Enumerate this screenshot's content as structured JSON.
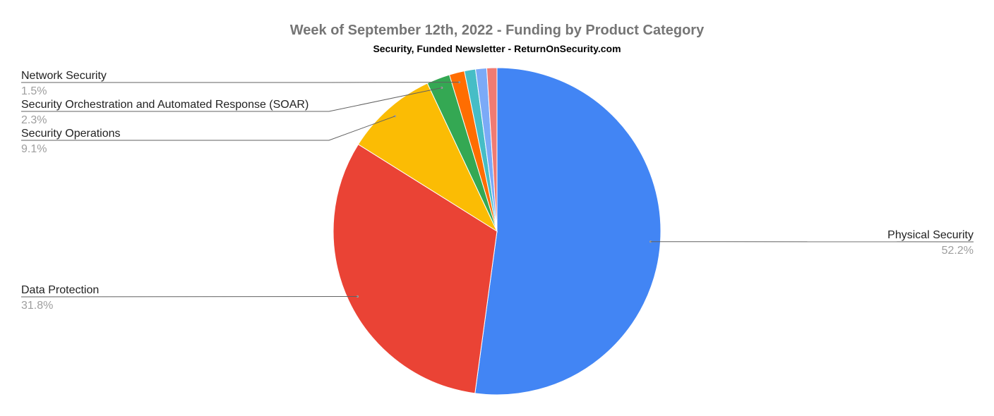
{
  "chart_data": {
    "type": "pie",
    "title": "Week of September 12th, 2022 - Funding by Product Category",
    "subtitle": "Security, Funded Newsletter - ReturnOnSecurity.com",
    "slices": [
      {
        "label": "Physical Security",
        "value": 52.2,
        "display": "52.2%",
        "color": "#4285f4"
      },
      {
        "label": "Data Protection",
        "value": 31.8,
        "display": "31.8%",
        "color": "#ea4335"
      },
      {
        "label": "Security Operations",
        "value": 9.1,
        "display": "9.1%",
        "color": "#fbbc04"
      },
      {
        "label": "Security Orchestration and Automated Response (SOAR)",
        "value": 2.3,
        "display": "2.3%",
        "color": "#34a853"
      },
      {
        "label": "Network Security",
        "value": 1.5,
        "display": "1.5%",
        "color": "#ff6d01"
      },
      {
        "value": 1.1,
        "color": "#46bdc6"
      },
      {
        "value": 1.1,
        "color": "#7baaf7"
      },
      {
        "value": 1.0,
        "color": "#f07b72"
      }
    ],
    "start_angle_deg": 0,
    "direction": "clockwise",
    "legend": "none"
  }
}
